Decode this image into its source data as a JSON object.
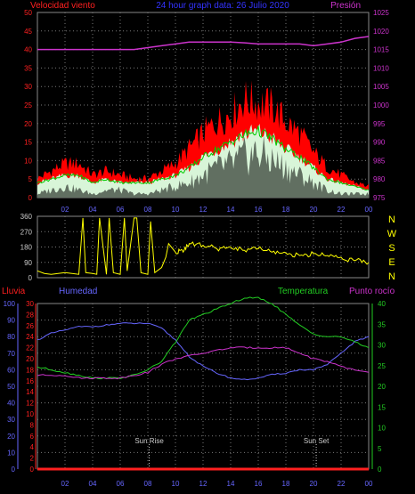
{
  "colors": {
    "wind": "#ff2020",
    "gust_fill": "#ff0000",
    "wind_light": "#d8f5d8",
    "wind_avg": "#00cc00",
    "pressure": "#cc33cc",
    "direction": "#ffff00",
    "humidity": "#6666ff",
    "temperature": "#22cc22",
    "dewpoint": "#cc33cc",
    "rain": "#ff2020",
    "grid": "#777777",
    "frame": "#888888",
    "title": "#3333ff"
  },
  "chart_data": [
    {
      "type": "area",
      "title": "24 hour graph data: 26 Julio 2020",
      "left_label": "Velocidad viento",
      "right_label": "Presión",
      "x_ticks": [
        "02",
        "04",
        "06",
        "08",
        "10",
        "12",
        "14",
        "16",
        "18",
        "20",
        "22",
        "00"
      ],
      "y_left_ticks": [
        "0",
        "5",
        "10",
        "15",
        "20",
        "25",
        "30",
        "35",
        "40",
        "45",
        "50"
      ],
      "y_left_range": [
        0,
        50
      ],
      "y_right_ticks": [
        "975",
        "980",
        "985",
        "990",
        "995",
        "1000",
        "1005",
        "1010",
        "1015",
        "1020",
        "1025"
      ],
      "y_right_range": [
        975,
        1025
      ],
      "hours": [
        0,
        1,
        2,
        3,
        4,
        5,
        6,
        7,
        8,
        9,
        10,
        11,
        12,
        13,
        14,
        15,
        16,
        17,
        18,
        19,
        20,
        21,
        22,
        23,
        24
      ],
      "series": [
        {
          "name": "gust",
          "values": [
            5,
            7,
            9,
            9,
            6,
            7,
            6,
            5,
            5,
            7,
            9,
            13,
            17,
            20,
            22,
            26,
            25,
            24,
            20,
            17,
            12,
            8,
            6,
            4,
            3
          ]
        },
        {
          "name": "average",
          "values": [
            4,
            5,
            6,
            6,
            4,
            5,
            4,
            4,
            4,
            5,
            6,
            8,
            11,
            13,
            15,
            17,
            18,
            16,
            13,
            11,
            8,
            5,
            4,
            3,
            2
          ]
        },
        {
          "name": "min",
          "values": [
            1,
            2,
            3,
            2,
            1,
            2,
            2,
            1,
            1,
            2,
            3,
            4,
            6,
            8,
            9,
            11,
            12,
            10,
            8,
            6,
            4,
            2,
            1,
            1,
            1
          ]
        },
        {
          "name": "pressure",
          "values": [
            1015,
            1015,
            1015,
            1015,
            1015,
            1015,
            1015,
            1015,
            1015.5,
            1016,
            1016.5,
            1017,
            1017,
            1017,
            1017,
            1016.8,
            1016.5,
            1016.5,
            1016.5,
            1016.5,
            1016,
            1016.5,
            1017,
            1018,
            1018.5
          ]
        }
      ]
    },
    {
      "type": "line",
      "right_labels": [
        "N",
        "W",
        "S",
        "E",
        "N"
      ],
      "y_left_ticks": [
        "0",
        "90",
        "180",
        "270",
        "360"
      ],
      "y_range": [
        0,
        360
      ],
      "hours": [
        0,
        0.5,
        1,
        1.5,
        2,
        2.5,
        3,
        3.3,
        3.5,
        4,
        4.3,
        4.5,
        5,
        5.2,
        5.5,
        6,
        6.3,
        6.5,
        7,
        7.2,
        7.5,
        8,
        8.2,
        8.5,
        9,
        9.3,
        9.5,
        10,
        10.5,
        11,
        12,
        13,
        14,
        15,
        16,
        17,
        18,
        19,
        20,
        21,
        22,
        23,
        24
      ],
      "values": [
        40,
        25,
        20,
        25,
        30,
        25,
        20,
        350,
        30,
        25,
        20,
        350,
        20,
        350,
        30,
        20,
        350,
        40,
        350,
        350,
        30,
        20,
        330,
        30,
        60,
        120,
        200,
        150,
        160,
        200,
        190,
        170,
        180,
        160,
        170,
        150,
        145,
        130,
        140,
        130,
        120,
        100,
        90
      ]
    },
    {
      "type": "line",
      "labels": {
        "rain": "Lluvia",
        "humidity": "Humedad",
        "temperature": "Temperatura",
        "dewpoint": "Punto rocío"
      },
      "x_ticks": [
        "02",
        "04",
        "06",
        "08",
        "10",
        "12",
        "14",
        "16",
        "18",
        "20",
        "22",
        "00"
      ],
      "y_humidity_ticks": [
        "0",
        "10",
        "20",
        "30",
        "40",
        "50",
        "60",
        "70",
        "80",
        "90",
        "100"
      ],
      "y_humidity_range": [
        0,
        100
      ],
      "y_temp_ticks": [
        "0",
        "2",
        "4",
        "6",
        "8",
        "10",
        "12",
        "14",
        "16",
        "18",
        "20",
        "22",
        "24",
        "26",
        "28",
        "30"
      ],
      "y_temp_range": [
        0,
        30
      ],
      "y_right_ticks": [
        "0",
        "5",
        "10",
        "15",
        "20",
        "25",
        "30",
        "35",
        "40"
      ],
      "y_right_range": [
        0,
        40
      ],
      "annotations": [
        {
          "label": "Sun Rise",
          "hour": 8.1
        },
        {
          "label": "Sun Set",
          "hour": 20.2
        }
      ],
      "hours": [
        0,
        1,
        2,
        3,
        4,
        5,
        6,
        7,
        8,
        9,
        10,
        11,
        12,
        13,
        14,
        15,
        16,
        17,
        18,
        19,
        20,
        21,
        22,
        23,
        24
      ],
      "series": [
        {
          "name": "humidity",
          "values": [
            78,
            82,
            84,
            86,
            86,
            87,
            88,
            88,
            88,
            85,
            78,
            68,
            62,
            58,
            55,
            54,
            55,
            57,
            58,
            60,
            60,
            63,
            70,
            77,
            80
          ]
        },
        {
          "name": "temperature",
          "values": [
            18.5,
            18,
            17.5,
            17,
            16.5,
            16.5,
            16.5,
            17,
            18,
            19.5,
            23,
            27,
            28,
            29,
            30,
            31,
            31,
            30,
            28,
            26,
            24.5,
            24,
            24,
            23,
            22
          ]
        },
        {
          "name": "dewpoint",
          "values": [
            17,
            17,
            17,
            16.5,
            16.5,
            16.5,
            16.5,
            17,
            17.5,
            19,
            20,
            20.5,
            21,
            21.5,
            22,
            22,
            22,
            22,
            22,
            21,
            20,
            19.5,
            18.5,
            18,
            17.5
          ]
        },
        {
          "name": "rain",
          "values": [
            0,
            0,
            0,
            0,
            0,
            0,
            0,
            0,
            0,
            0,
            0,
            0,
            0,
            0,
            0,
            0,
            0,
            0,
            0,
            0,
            0,
            0,
            0,
            0,
            0
          ]
        }
      ]
    }
  ]
}
